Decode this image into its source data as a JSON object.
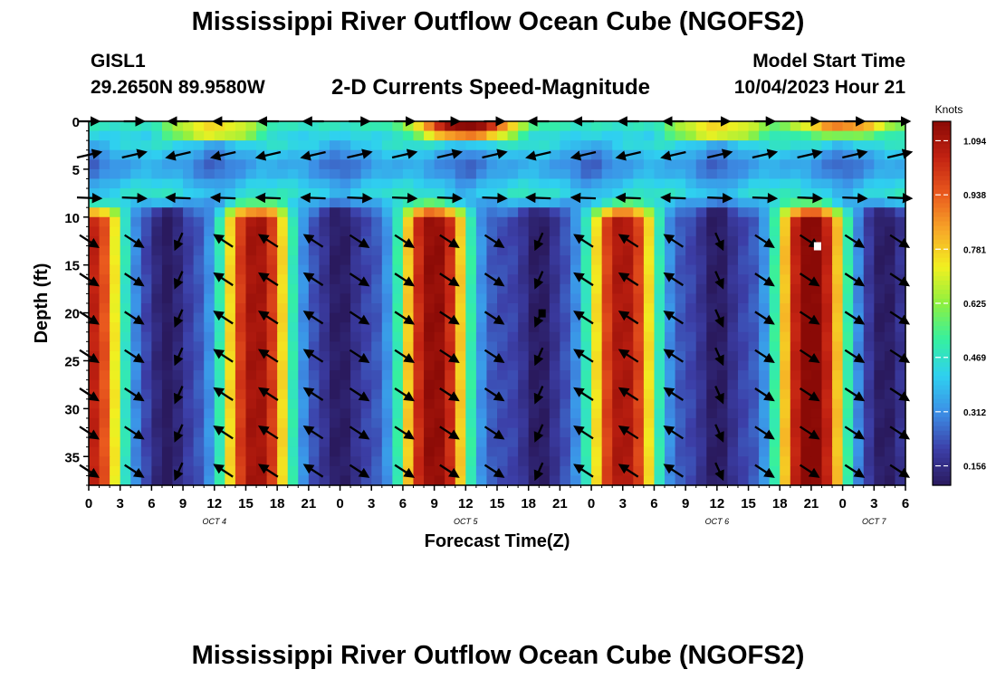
{
  "header": {
    "title": "Mississippi River Outflow Ocean Cube (NGOFS2)",
    "station_id": "GISL1",
    "station_coords": "29.2650N  89.9580W",
    "subtitle": "2-D Currents Speed-Magnitude",
    "model_start_label": "Model Start Time",
    "model_start_value": "10/04/2023 Hour 21"
  },
  "footer": {
    "title": "Mississippi River Outflow Ocean Cube (NGOFS2)"
  },
  "colors": {
    "ramp": [
      "#2a1a5e",
      "#3c3fa8",
      "#3c8fe6",
      "#2fd0f0",
      "#35f0a0",
      "#8ef040",
      "#f2f020",
      "#f7a828",
      "#ea5a1e",
      "#c22212",
      "#8a0a06"
    ],
    "arrow": "#000000"
  },
  "chart_data": {
    "type": "heatmap",
    "title": "2-D Currents Speed-Magnitude",
    "xlabel": "Forecast Time(Z)",
    "ylabel": "Depth (ft)",
    "x_range_hours": [
      0,
      78
    ],
    "ylim": [
      0,
      38
    ],
    "y_ticks": [
      0,
      5,
      10,
      15,
      20,
      25,
      30,
      35
    ],
    "x_tick_labels": [
      "0",
      "3",
      "6",
      "9",
      "12",
      "15",
      "18",
      "21",
      "0",
      "3",
      "6",
      "9",
      "12",
      "15",
      "18",
      "21",
      "0",
      "3",
      "6",
      "9",
      "12",
      "15",
      "18",
      "21",
      "0",
      "3",
      "6"
    ],
    "date_labels": [
      {
        "text": "OCT 4",
        "hour": 12
      },
      {
        "text": "OCT 5",
        "hour": 36
      },
      {
        "text": "OCT 6",
        "hour": 60
      },
      {
        "text": "OCT 7",
        "hour": 75
      }
    ],
    "colorbar": {
      "title": "Knots",
      "min": 0.1,
      "max": 1.15,
      "ticks": [
        0.156,
        0.312,
        0.469,
        0.625,
        0.781,
        0.938,
        1.094
      ]
    },
    "speed_peaks_knots": [
      {
        "center_hour": 0,
        "speed": 1.02
      },
      {
        "center_hour": 16,
        "speed": 1.08
      },
      {
        "center_hour": 33,
        "speed": 1.12
      },
      {
        "center_hour": 51,
        "speed": 1.06
      },
      {
        "center_hour": 69,
        "speed": 1.15
      }
    ],
    "speed_minima_hours": [
      7.5,
      24,
      43,
      60,
      76
    ],
    "surface_layer_depth_ft": 8,
    "flood_hours": [
      [
        6,
        22
      ],
      [
        42,
        56
      ]
    ],
    "ebb_hours": [
      [
        0,
        4
      ],
      [
        26,
        40
      ],
      [
        58,
        76
      ]
    ],
    "arrow_rows_depth_ft": [
      0,
      3.5,
      8,
      12.5,
      16.5,
      20.5,
      24.5,
      28.5,
      32.5,
      36.5
    ],
    "arrow_columns_hours": [
      0,
      4.3,
      8.6,
      12.9,
      17.2,
      21.5,
      25.8,
      30.1,
      34.4,
      38.7,
      43,
      47.3,
      51.6,
      55.9,
      60.2,
      64.5,
      68.8,
      73.1,
      77.4
    ],
    "markers": [
      {
        "hour": 43.3,
        "depth_ft": 20,
        "color": "#000000"
      },
      {
        "hour": 69.6,
        "depth_ft": 13,
        "color": "#ffffff"
      }
    ]
  }
}
